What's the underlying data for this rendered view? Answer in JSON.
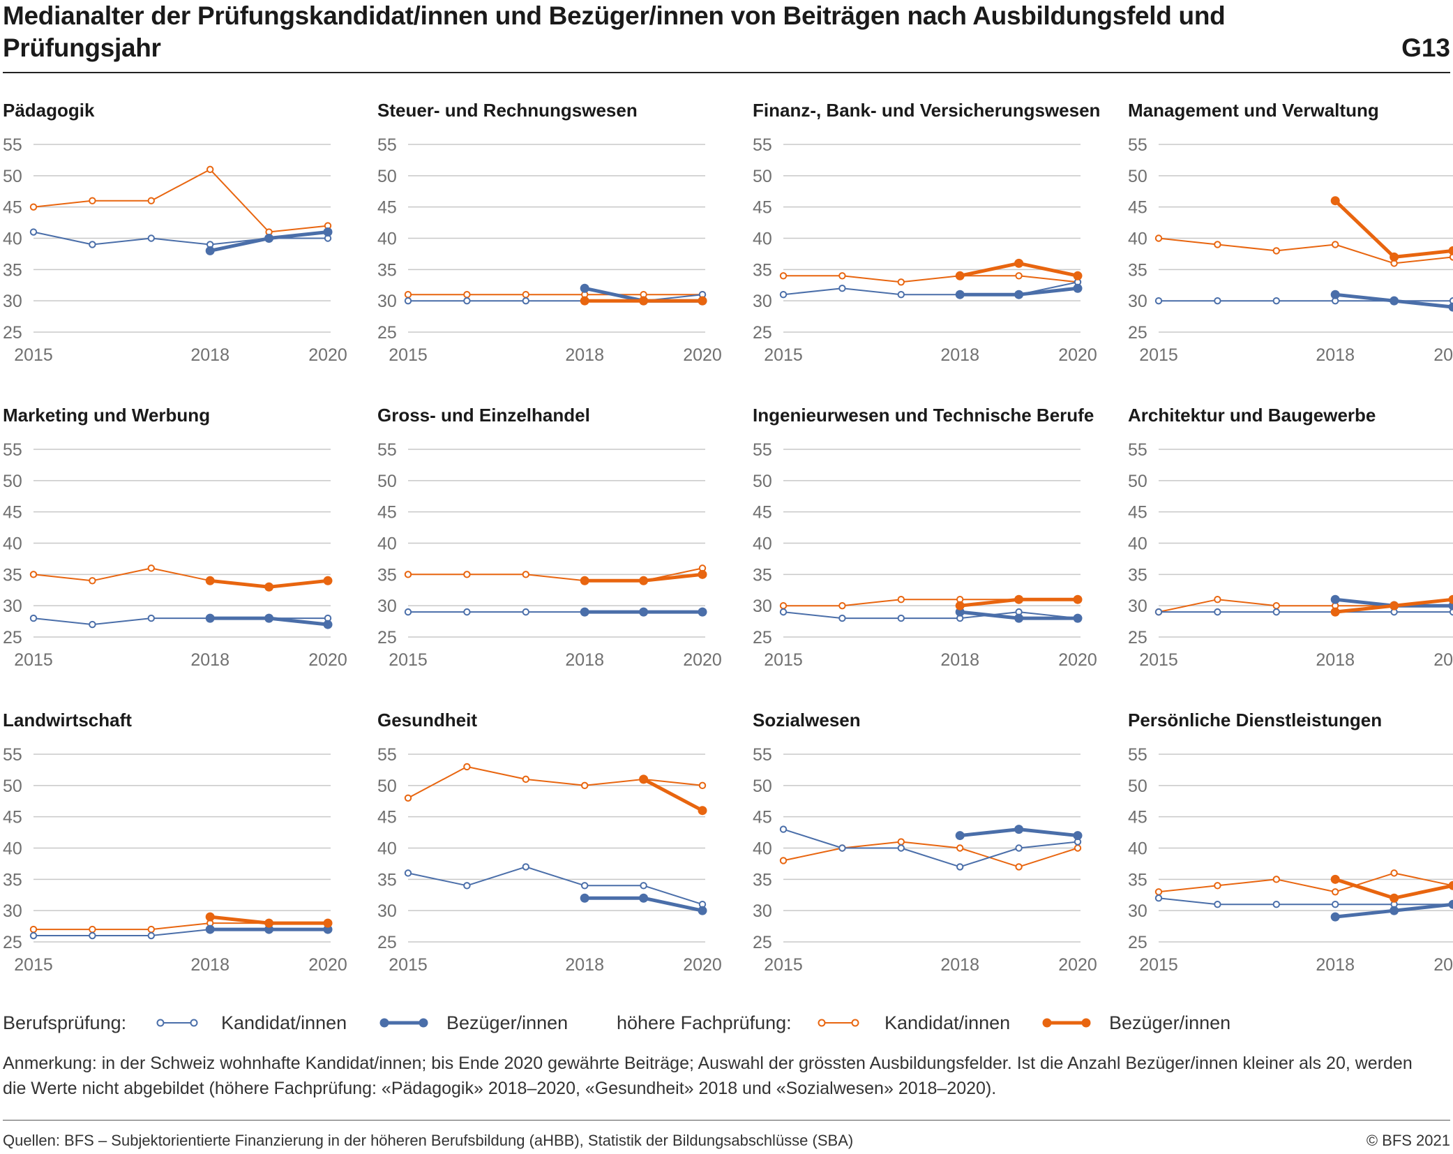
{
  "title": "Medianalter der Prüfungskandidat/innen und Bezüger/innen von Beiträgen nach Ausbildungsfeld und Prüfungsjahr",
  "chart_id": "G13",
  "colors": {
    "blue": "#4a6ea9",
    "orange": "#e8650f",
    "grid": "#c8c8c8",
    "tick": "#707070"
  },
  "legend": {
    "bp_label": "Berufsprüfung:",
    "bp_kand": "Kandidat/innen",
    "bp_bez": "Bezüger/innen",
    "hfp_label": "höhere Fachprüfung:",
    "hfp_kand": "Kandidat/innen",
    "hfp_bez": "Bezüger/innen"
  },
  "note": "Anmerkung: in der Schweiz wohnhafte Kandidat/innen; bis Ende 2020 gewährte Beiträge; Auswahl der grössten Ausbildungsfelder. Ist die Anzahl Bezüger/innen kleiner als 20, werden die Werte nicht abgebildet (höhere Fachprüfung: «Pädagogik» 2018–2020, «Gesundheit» 2018 und «Sozialwesen» 2018–2020).",
  "source": "Quellen: BFS – Subjektorientierte Finanzierung in der höheren Berufsbildung (aHBB), Statistik der Bildungsabschlüsse (SBA)",
  "copyright": "© BFS 2021",
  "chart_data": {
    "type": "line",
    "x": [
      2015,
      2016,
      2017,
      2018,
      2019,
      2020
    ],
    "xticks": [
      2015,
      2018,
      2020
    ],
    "yticks": [
      25,
      30,
      35,
      40,
      45,
      50,
      55
    ],
    "ylim": [
      25,
      55
    ],
    "grid": true,
    "panels": [
      {
        "title": "Pädagogik",
        "bp_kandidaten": [
          41,
          39,
          40,
          39,
          40,
          40
        ],
        "bp_bezueger": [
          null,
          null,
          null,
          38,
          40,
          41
        ],
        "hfp_kandidaten": [
          45,
          46,
          46,
          51,
          41,
          42
        ],
        "hfp_bezueger": [
          null,
          null,
          null,
          null,
          null,
          null
        ]
      },
      {
        "title": "Steuer- und Rechnungswesen",
        "bp_kandidaten": [
          30,
          30,
          30,
          30,
          30,
          31
        ],
        "bp_bezueger": [
          null,
          null,
          null,
          32,
          30,
          30
        ],
        "hfp_kandidaten": [
          31,
          31,
          31,
          31,
          31,
          31
        ],
        "hfp_bezueger": [
          null,
          null,
          null,
          30,
          30,
          30
        ]
      },
      {
        "title": "Finanz-, Bank- und Versicherungswesen",
        "bp_kandidaten": [
          31,
          32,
          31,
          31,
          31,
          33
        ],
        "bp_bezueger": [
          null,
          null,
          null,
          31,
          31,
          32
        ],
        "hfp_kandidaten": [
          34,
          34,
          33,
          34,
          34,
          33
        ],
        "hfp_bezueger": [
          null,
          null,
          null,
          34,
          36,
          34
        ]
      },
      {
        "title": "Management und Verwaltung",
        "bp_kandidaten": [
          30,
          30,
          30,
          30,
          30,
          30
        ],
        "bp_bezueger": [
          null,
          null,
          null,
          31,
          30,
          29
        ],
        "hfp_kandidaten": [
          40,
          39,
          38,
          39,
          36,
          37
        ],
        "hfp_bezueger": [
          null,
          null,
          null,
          46,
          37,
          38
        ]
      },
      {
        "title": "Marketing und Werbung",
        "bp_kandidaten": [
          28,
          27,
          28,
          28,
          28,
          28
        ],
        "bp_bezueger": [
          null,
          null,
          null,
          28,
          28,
          27
        ],
        "hfp_kandidaten": [
          35,
          34,
          36,
          34,
          33,
          34
        ],
        "hfp_bezueger": [
          null,
          null,
          null,
          34,
          33,
          34
        ]
      },
      {
        "title": "Gross- und Einzelhandel",
        "bp_kandidaten": [
          29,
          29,
          29,
          29,
          29,
          29
        ],
        "bp_bezueger": [
          null,
          null,
          null,
          29,
          29,
          29
        ],
        "hfp_kandidaten": [
          35,
          35,
          35,
          34,
          34,
          36
        ],
        "hfp_bezueger": [
          null,
          null,
          null,
          34,
          34,
          35
        ]
      },
      {
        "title": "Ingenieurwesen und Technische Berufe",
        "bp_kandidaten": [
          29,
          28,
          28,
          28,
          29,
          28
        ],
        "bp_bezueger": [
          null,
          null,
          null,
          29,
          28,
          28
        ],
        "hfp_kandidaten": [
          30,
          30,
          31,
          31,
          31,
          31
        ],
        "hfp_bezueger": [
          null,
          null,
          null,
          30,
          31,
          31
        ]
      },
      {
        "title": "Architektur und Baugewerbe",
        "bp_kandidaten": [
          29,
          29,
          29,
          29,
          29,
          29
        ],
        "bp_bezueger": [
          null,
          null,
          null,
          31,
          30,
          30
        ],
        "hfp_kandidaten": [
          29,
          31,
          30,
          30,
          30,
          31
        ],
        "hfp_bezueger": [
          null,
          null,
          null,
          29,
          30,
          31
        ]
      },
      {
        "title": "Landwirtschaft",
        "bp_kandidaten": [
          26,
          26,
          26,
          27,
          27,
          27
        ],
        "bp_bezueger": [
          null,
          null,
          null,
          27,
          27,
          27
        ],
        "hfp_kandidaten": [
          27,
          27,
          27,
          28,
          28,
          28
        ],
        "hfp_bezueger": [
          null,
          null,
          null,
          29,
          28,
          28
        ]
      },
      {
        "title": "Gesundheit",
        "bp_kandidaten": [
          36,
          34,
          37,
          34,
          34,
          31
        ],
        "bp_bezueger": [
          null,
          null,
          null,
          32,
          32,
          30
        ],
        "hfp_kandidaten": [
          48,
          53,
          51,
          50,
          51,
          50
        ],
        "hfp_bezueger": [
          null,
          null,
          null,
          null,
          51,
          46
        ]
      },
      {
        "title": "Sozialwesen",
        "bp_kandidaten": [
          43,
          40,
          40,
          37,
          40,
          41
        ],
        "bp_bezueger": [
          null,
          null,
          null,
          42,
          43,
          42
        ],
        "hfp_kandidaten": [
          38,
          40,
          41,
          40,
          37,
          40
        ],
        "hfp_bezueger": [
          null,
          null,
          null,
          null,
          null,
          null
        ]
      },
      {
        "title": "Persönliche Dienstleistungen",
        "bp_kandidaten": [
          32,
          31,
          31,
          31,
          31,
          31
        ],
        "bp_bezueger": [
          null,
          null,
          null,
          29,
          30,
          31
        ],
        "hfp_kandidaten": [
          33,
          34,
          35,
          33,
          36,
          34
        ],
        "hfp_bezueger": [
          null,
          null,
          null,
          35,
          32,
          34
        ]
      }
    ]
  }
}
